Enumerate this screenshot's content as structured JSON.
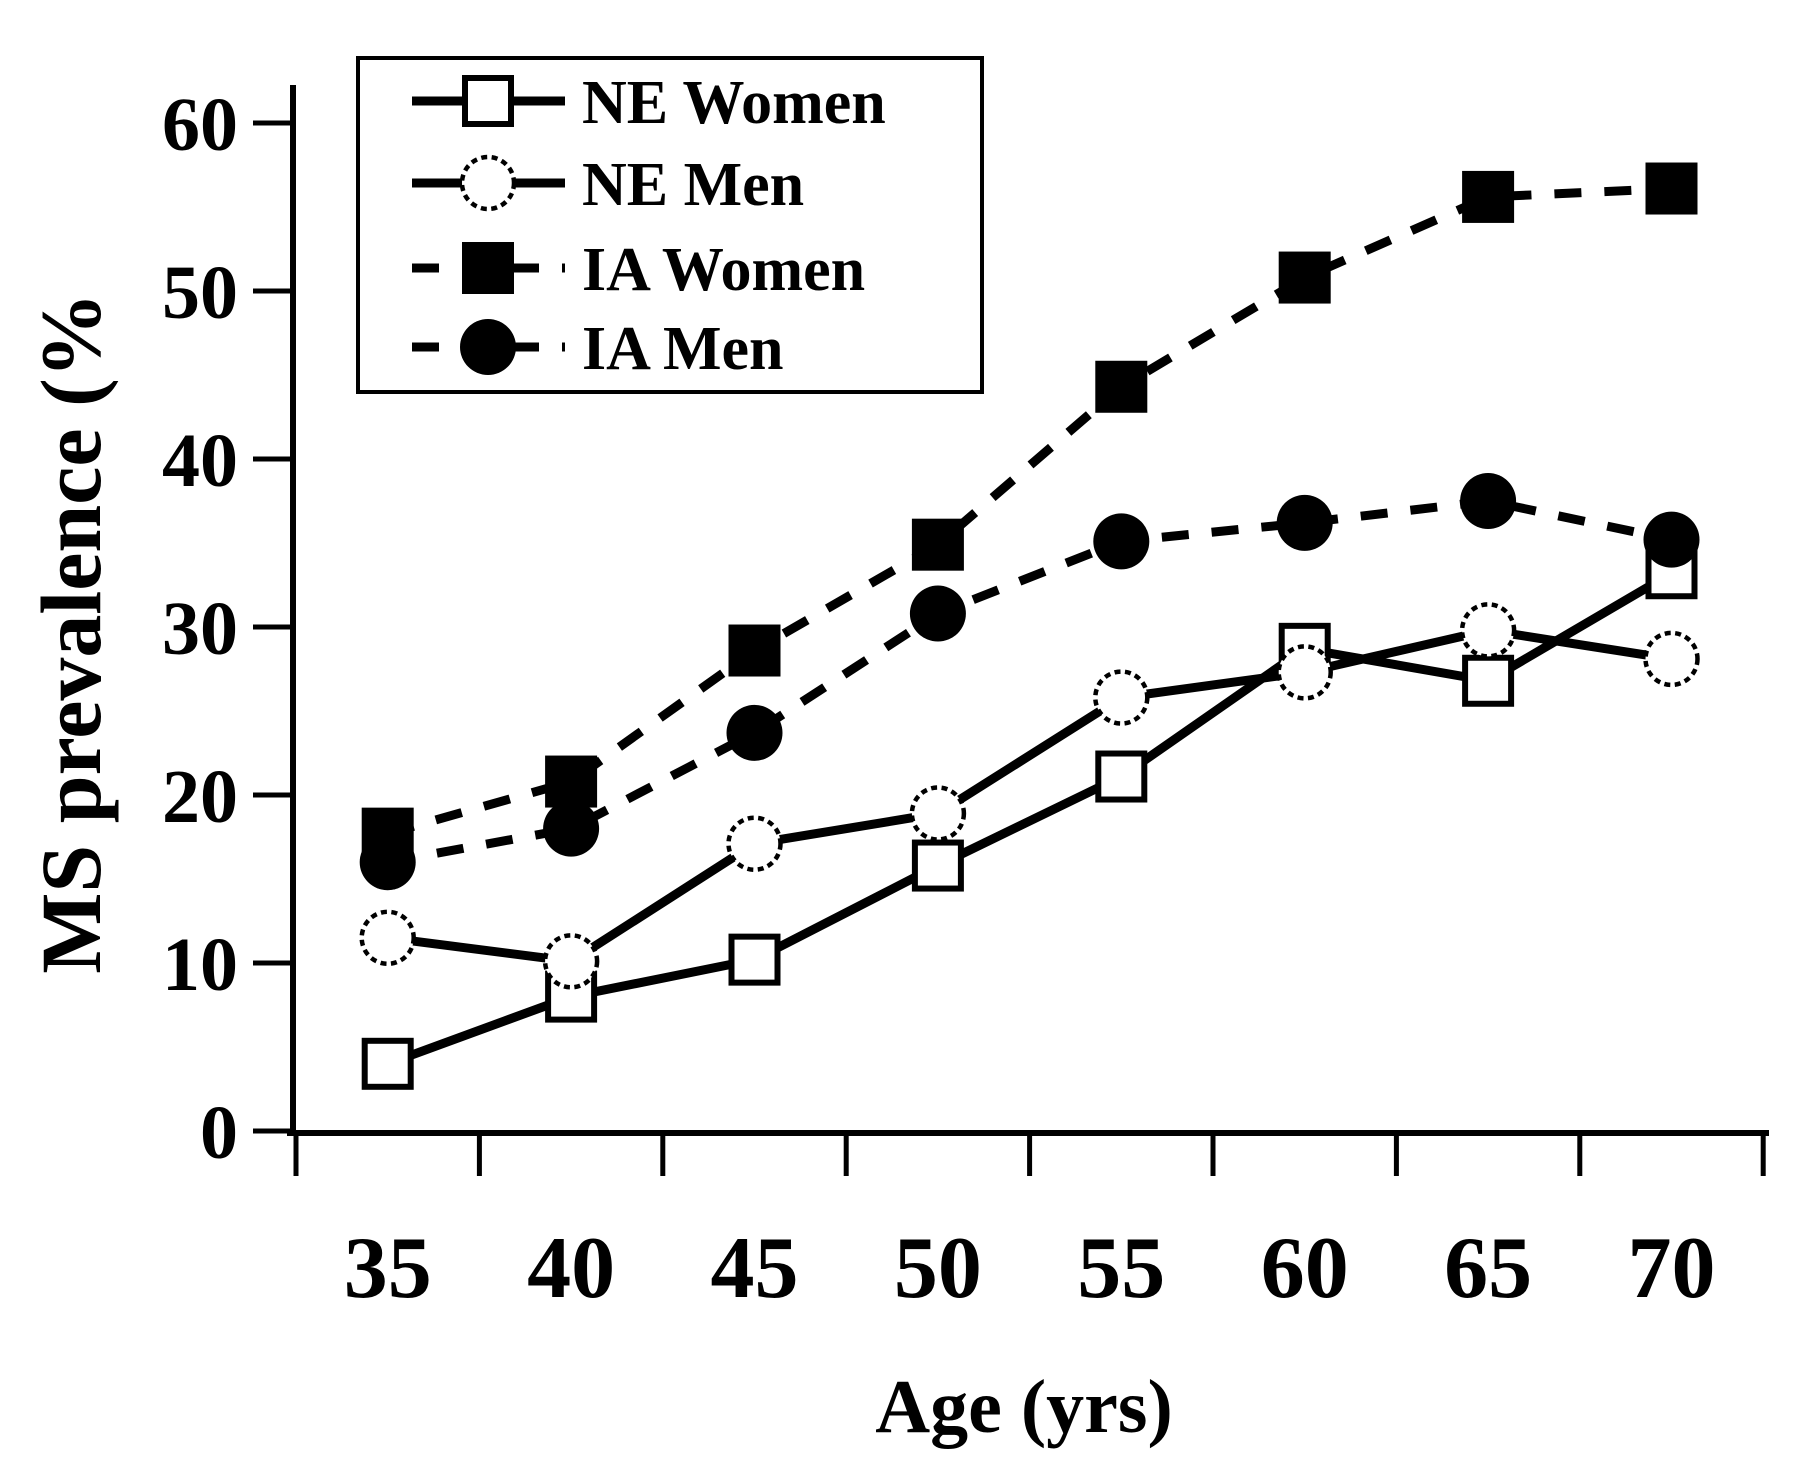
{
  "figure": {
    "background_color": "#ffffff",
    "ink_color": "#000000"
  },
  "chart_data": {
    "type": "line",
    "title": "",
    "xlabel": "Age (yrs)",
    "ylabel": "MS prevalence (%",
    "categories": [
      "35",
      "40",
      "45",
      "50",
      "55",
      "60",
      "65",
      "70"
    ],
    "y_ticks": [
      "0",
      "10",
      "20",
      "30",
      "40",
      "50",
      "60"
    ],
    "ylim": [
      0,
      60
    ],
    "grid": false,
    "legend_position": "top-left",
    "series": [
      {
        "name": "NE Women",
        "marker": "open-square",
        "line": "solid",
        "values": [
          4.0,
          8.0,
          10.2,
          15.8,
          21.1,
          28.7,
          26.8,
          33.2
        ]
      },
      {
        "name": "NE Men",
        "marker": "open-circle",
        "line": "solid",
        "values": [
          11.5,
          10.1,
          17.1,
          18.9,
          25.8,
          27.3,
          29.8,
          28.1
        ]
      },
      {
        "name": "IA Women",
        "marker": "filled-square",
        "line": "dashed",
        "values": [
          17.7,
          20.8,
          28.6,
          34.9,
          44.3,
          50.8,
          55.6,
          56.1
        ]
      },
      {
        "name": "IA Men",
        "marker": "filled-circle",
        "line": "dashed",
        "values": [
          16.0,
          18.0,
          23.7,
          30.8,
          35.1,
          36.2,
          37.5,
          35.2
        ]
      }
    ]
  },
  "legend": {
    "items": [
      {
        "label": "NE Women"
      },
      {
        "label": "NE Men"
      },
      {
        "label": "IA Women"
      },
      {
        "label": "IA Men"
      }
    ]
  }
}
